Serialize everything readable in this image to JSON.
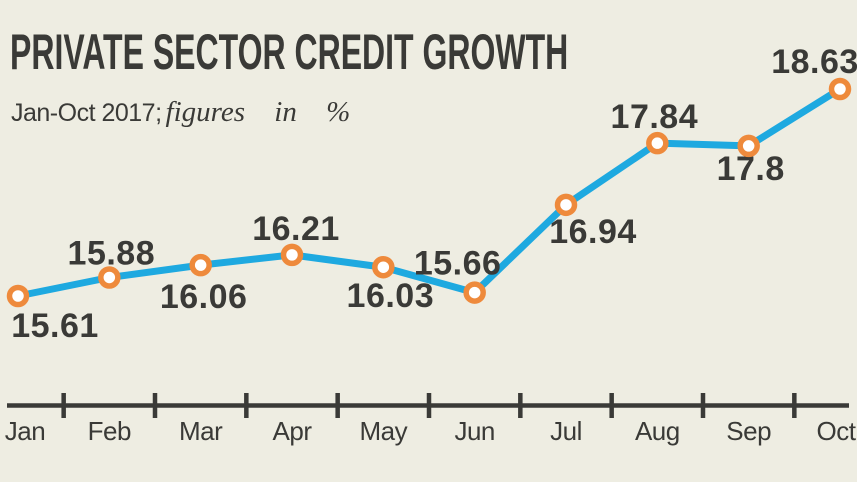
{
  "header": {
    "title": "PRIVATE SECTOR CREDIT GROWTH",
    "subtitle_period": "Jan-Oct 2017;",
    "subtitle_note": "figures in %"
  },
  "colors": {
    "background": "#eeede2",
    "text": "#3a3a37",
    "line": "#1ea9e0",
    "marker_ring": "#ee8a3c",
    "marker_fill": "#ffffff"
  },
  "chart_data": {
    "type": "line",
    "title": "PRIVATE SECTOR CREDIT GROWTH",
    "subtitle": "Jan-Oct 2017; figures in %",
    "unit": "%",
    "categories": [
      "Jan",
      "Feb",
      "Mar",
      "Apr",
      "May",
      "Jun",
      "Jul",
      "Aug",
      "Sep",
      "Oct"
    ],
    "values": [
      15.61,
      15.88,
      16.06,
      16.21,
      16.03,
      15.66,
      16.94,
      17.84,
      17.8,
      18.63
    ],
    "value_labels": [
      "15.61",
      "15.88",
      "16.06",
      "16.21",
      "16.03",
      "15.66",
      "16.94",
      "17.84",
      "17.8",
      "18.63"
    ],
    "label_positions": [
      "below",
      "above",
      "below",
      "above",
      "below",
      "above",
      "below",
      "above",
      "below",
      "above"
    ],
    "xlabel": "",
    "ylabel": "",
    "ylim": [
      15.61,
      18.63
    ],
    "grid": false,
    "legend": "none"
  }
}
